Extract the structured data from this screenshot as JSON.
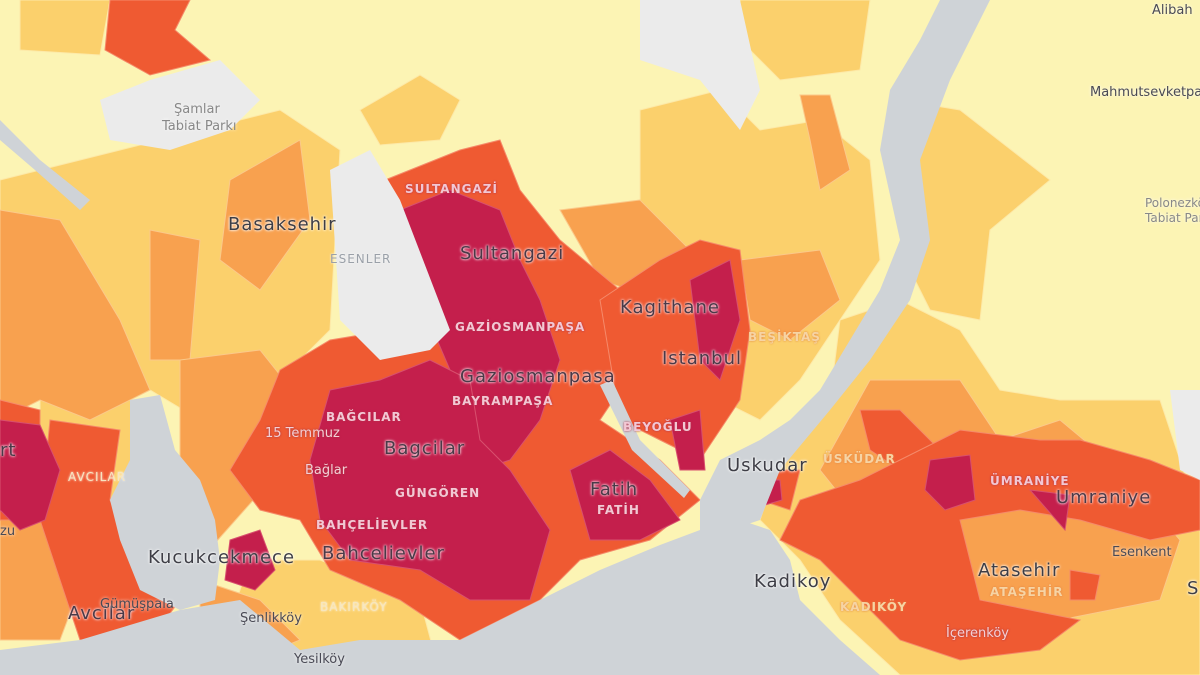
{
  "map": {
    "colors": {
      "water": "#cfd3d7",
      "no_data": "#ebebeb",
      "level_1": "#fcf4b4",
      "level_2": "#fbd06c",
      "level_3": "#f8a14f",
      "level_4": "#ef5a32",
      "level_5": "#c41f4c"
    },
    "district_labels": [
      {
        "text": "Basaksehir",
        "style": "big"
      },
      {
        "text": "Sultangazi",
        "style": "big"
      },
      {
        "text": "Kagithane",
        "style": "big"
      },
      {
        "text": "Istanbul",
        "style": "big"
      },
      {
        "text": "Gaziosmanpasa",
        "style": "big"
      },
      {
        "text": "Bagcilar",
        "style": "big"
      },
      {
        "text": "Fatih",
        "style": "big"
      },
      {
        "text": "Uskudar",
        "style": "big"
      },
      {
        "text": "Umraniye",
        "style": "big"
      },
      {
        "text": "Kucukcekmece",
        "style": "big"
      },
      {
        "text": "Bahcelievler",
        "style": "big"
      },
      {
        "text": "Kadikoy",
        "style": "big"
      },
      {
        "text": "Atasehir",
        "style": "big"
      },
      {
        "text": "Avcilar",
        "style": "big"
      }
    ],
    "place_labels": [
      {
        "text": "Alibah"
      },
      {
        "text": "Mahmutsevketpasa"
      },
      {
        "text": "Şamlar"
      },
      {
        "text": "Tabiat Parkı"
      },
      {
        "text": "Polonezköy"
      },
      {
        "text": "Tabiat Park"
      },
      {
        "text": "15 Temmuz"
      },
      {
        "text": "Bağlar"
      },
      {
        "text": "Gümüşpala"
      },
      {
        "text": "Şenlikköy"
      },
      {
        "text": "Yesilköy"
      },
      {
        "text": "Esenkent"
      },
      {
        "text": "İçerenköy"
      },
      {
        "text": "zu"
      },
      {
        "text": "rt"
      },
      {
        "text": "S"
      }
    ],
    "admin_labels": [
      {
        "text": "SULTANGAZİ"
      },
      {
        "text": "ESENLER"
      },
      {
        "text": "GAZİOSMANPAŞA"
      },
      {
        "text": "BAYRAMPAŞA"
      },
      {
        "text": "BAĞCILAR"
      },
      {
        "text": "GÜNGÖREN"
      },
      {
        "text": "BAHÇELİEVLER"
      },
      {
        "text": "FATİH"
      },
      {
        "text": "BEYOĞLU"
      },
      {
        "text": "BEŞİKTAŞ"
      },
      {
        "text": "ÜSKÜDAR"
      },
      {
        "text": "ÜMRANİYE"
      },
      {
        "text": "ATAŞEHİR"
      },
      {
        "text": "KADIKÖY"
      },
      {
        "text": "BAKIRKÖY"
      },
      {
        "text": "AVCILAR"
      }
    ]
  }
}
